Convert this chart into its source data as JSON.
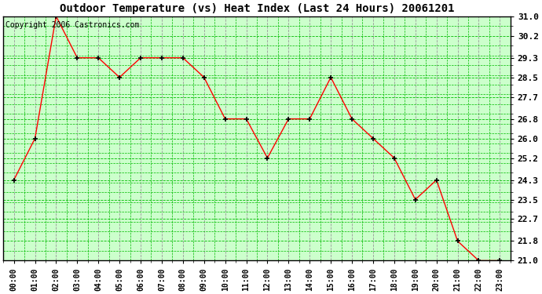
{
  "title": "Outdoor Temperature (vs) Heat Index (Last 24 Hours) 20061201",
  "copyright": "Copyright 2006 Castronics.com",
  "x_labels": [
    "00:00",
    "01:00",
    "02:00",
    "03:00",
    "04:00",
    "05:00",
    "06:00",
    "07:00",
    "08:00",
    "09:00",
    "10:00",
    "11:00",
    "12:00",
    "13:00",
    "14:00",
    "15:00",
    "16:00",
    "17:00",
    "18:00",
    "19:00",
    "20:00",
    "21:00",
    "22:00",
    "23:00"
  ],
  "y_values": [
    24.3,
    26.0,
    31.0,
    29.3,
    29.3,
    28.5,
    29.3,
    29.3,
    29.3,
    28.5,
    26.8,
    26.8,
    25.2,
    26.8,
    26.8,
    28.5,
    26.8,
    26.0,
    25.2,
    23.5,
    24.3,
    21.8,
    21.0,
    21.0
  ],
  "y_ticks": [
    21.0,
    21.8,
    22.7,
    23.5,
    24.3,
    25.2,
    26.0,
    26.8,
    27.7,
    28.5,
    29.3,
    30.2,
    31.0
  ],
  "ylim_min": 21.0,
  "ylim_max": 31.0,
  "line_color": "#FF0000",
  "marker": "+",
  "marker_color": "#000000",
  "bg_color": "#FFFFFF",
  "plot_bg": "#CCFFCC",
  "grid_color_x_major": "#999999",
  "grid_color_y": "#00BB00",
  "title_fontsize": 10,
  "copyright_fontsize": 7,
  "tick_fontsize": 8
}
